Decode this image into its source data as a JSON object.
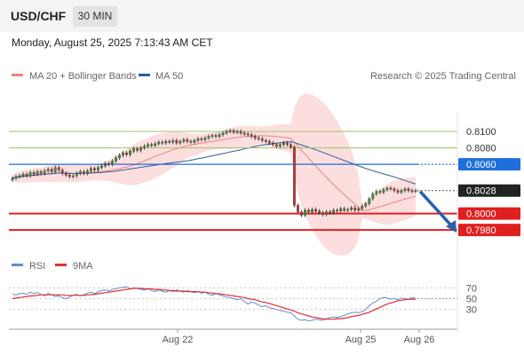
{
  "header": {
    "symbol": "USD/CHF",
    "timeframe": "30 MIN"
  },
  "timestamp": "Monday, August 25, 2025 7:13:43 AM CET",
  "legend": {
    "ma20": "MA 20 + Bollinger Bands",
    "ma50": "MA 50",
    "ma20_color": "#f08080",
    "ma50_color": "#2e5c9e"
  },
  "source": "Research © 2025 Trading Central",
  "rsi_legend": {
    "rsi": "RSI",
    "ma": "9MA",
    "rsi_color": "#5b8dd9",
    "ma_color": "#e03030"
  },
  "chart_data": [
    {
      "type": "candlestick",
      "title": "USD/CHF",
      "ylim": [
        0.7965,
        0.8125
      ],
      "xticks": [
        "Aug 22",
        "Aug 25",
        "Aug 26"
      ],
      "price_labels": [
        {
          "label": "0.8100",
          "value": 0.81,
          "kind": "resistance",
          "color": "#9dc462"
        },
        {
          "label": "0.8080",
          "value": 0.808,
          "kind": "resistance",
          "color": "#9dc462"
        },
        {
          "label": "0.8060",
          "value": 0.806,
          "kind": "pivot",
          "color": "#1e6fd9"
        },
        {
          "label": "0.8028",
          "value": 0.8028,
          "kind": "last",
          "color": "#222222"
        },
        {
          "label": "0.8000",
          "value": 0.8,
          "kind": "support",
          "color": "#e02020"
        },
        {
          "label": "0.7980",
          "value": 0.798,
          "kind": "support",
          "color": "#e02020"
        }
      ],
      "close": [
        0.8043,
        0.8045,
        0.8046,
        0.8048,
        0.8046,
        0.805,
        0.8048,
        0.8051,
        0.8049,
        0.8052,
        0.8054,
        0.8051,
        0.8056,
        0.8053,
        0.8049,
        0.8047,
        0.8045,
        0.8046,
        0.8049,
        0.8051,
        0.8049,
        0.8052,
        0.8055,
        0.8053,
        0.8056,
        0.8058,
        0.8061,
        0.806,
        0.8064,
        0.8068,
        0.8071,
        0.8074,
        0.8072,
        0.8076,
        0.8079,
        0.8077,
        0.808,
        0.8082,
        0.8084,
        0.8083,
        0.8085,
        0.8087,
        0.8086,
        0.8088,
        0.8087,
        0.8089,
        0.8086,
        0.8088,
        0.809,
        0.8088,
        0.8087,
        0.8089,
        0.8091,
        0.809,
        0.8092,
        0.8094,
        0.8095,
        0.8094,
        0.8096,
        0.8098,
        0.81,
        0.8101,
        0.8099,
        0.81,
        0.8098,
        0.8097,
        0.8096,
        0.8094,
        0.8092,
        0.8091,
        0.8089,
        0.8088,
        0.8086,
        0.8084,
        0.8082,
        0.8084,
        0.8086,
        0.8084,
        0.8081,
        0.801,
        0.8002,
        0.7998,
        0.8004,
        0.8002,
        0.8005,
        0.8003,
        0.8001,
        0.7999,
        0.8002,
        0.8001,
        0.8004,
        0.8003,
        0.8006,
        0.8004,
        0.8005,
        0.8007,
        0.8004,
        0.8006,
        0.8009,
        0.8012,
        0.8018,
        0.8024,
        0.8027,
        0.8026,
        0.8029,
        0.8031,
        0.803,
        0.8028,
        0.8026,
        0.8028,
        0.803,
        0.8028,
        0.8027,
        0.8028
      ],
      "forecast": [
        {
          "from": 0.8028,
          "to": 0.798
        }
      ]
    },
    {
      "type": "line",
      "title": "RSI",
      "ylim": [
        0,
        100
      ],
      "yticks": [
        70,
        50,
        30
      ],
      "series": [
        {
          "name": "RSI",
          "values": [
            58,
            57,
            59,
            60,
            58,
            62,
            59,
            61,
            58,
            55,
            60,
            57,
            54,
            55,
            52,
            50,
            53,
            56,
            58,
            55,
            57,
            60,
            62,
            59,
            63,
            65,
            66,
            64,
            67,
            68,
            70,
            71,
            72,
            68,
            70,
            69,
            67,
            66,
            68,
            65,
            63,
            66,
            64,
            62,
            65,
            63,
            66,
            64,
            62,
            65,
            63,
            61,
            63,
            60,
            62,
            58,
            56,
            60,
            57,
            55,
            53,
            52,
            50,
            48,
            50,
            45,
            40,
            44,
            42,
            38,
            35,
            37,
            33,
            32,
            30,
            28,
            27,
            25,
            24,
            18,
            12,
            10,
            11,
            9,
            10,
            12,
            11,
            10,
            13,
            15,
            16,
            15,
            17,
            19,
            22,
            24,
            25,
            24,
            26,
            30,
            37,
            42,
            45,
            50,
            52,
            51,
            49,
            50,
            48,
            51,
            50,
            49,
            52,
            50
          ]
        },
        {
          "name": "9MA",
          "values": [
            50,
            51,
            52,
            53,
            54,
            55,
            55,
            56,
            57,
            57,
            57,
            57,
            57,
            57,
            57,
            56,
            56,
            56,
            56,
            56,
            56,
            57,
            57,
            58,
            59,
            60,
            61,
            62,
            63,
            64,
            65,
            66,
            67,
            68,
            69,
            69,
            69,
            68,
            68,
            68,
            67,
            67,
            66,
            66,
            65,
            65,
            64,
            64,
            64,
            63,
            63,
            63,
            63,
            62,
            62,
            61,
            60,
            59,
            59,
            58,
            57,
            56,
            55,
            54,
            53,
            52,
            50,
            49,
            48,
            46,
            44,
            43,
            41,
            39,
            37,
            35,
            33,
            31,
            29,
            27,
            24,
            22,
            20,
            18,
            16,
            15,
            14,
            13,
            12,
            12,
            12,
            13,
            13,
            14,
            15,
            17,
            18,
            19,
            21,
            23,
            25,
            28,
            31,
            34,
            37,
            40,
            42,
            44,
            46,
            47,
            48,
            49,
            49,
            49
          ]
        }
      ]
    }
  ]
}
